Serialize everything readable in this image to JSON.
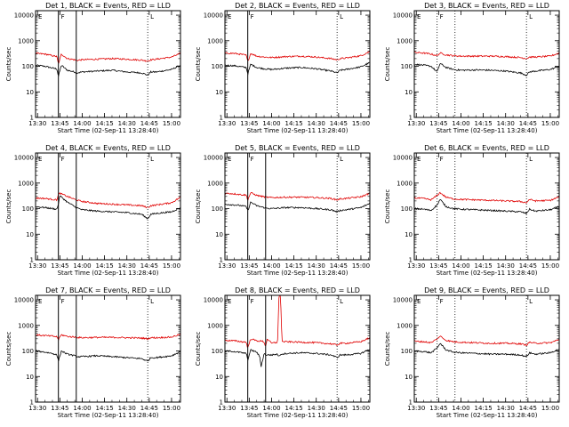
{
  "colors": {
    "events": "#000000",
    "lld": "#e00000",
    "frame": "#000000",
    "background": "#ffffff"
  },
  "shared": {
    "xlabel": "Start Time (02-Sep-11 13:28:40)",
    "ylabel": "Counts/sec",
    "xticks": [
      "13:30",
      "13:45",
      "14:00",
      "14:15",
      "14:30",
      "14:45",
      "15:00"
    ],
    "yticks": [
      "1",
      "10",
      "100",
      "1000",
      "10000"
    ],
    "flags": [
      "E",
      "F",
      "L"
    ]
  },
  "chart_data": [
    {
      "type": "line",
      "title": "Det 1, BLACK = Events, RED = LLD",
      "yscale": "log",
      "xlim": [
        "13:28:40",
        "15:06:00"
      ],
      "ylim": [
        1,
        15000
      ],
      "solid_markers": [
        "13:44",
        "13:56"
      ],
      "dotted_markers": [
        "14:44"
      ],
      "series": [
        {
          "name": "Events",
          "color": "#000000",
          "x": [
            "13:28:40",
            "13:35",
            "13:40",
            "13:43",
            "13:44",
            "13:46",
            "13:50",
            "13:55",
            "13:56",
            "14:00",
            "14:10",
            "14:20",
            "14:30",
            "14:40",
            "14:44",
            "14:46",
            "14:50",
            "15:00",
            "15:06"
          ],
          "y": [
            110,
            100,
            85,
            80,
            40,
            110,
            70,
            60,
            55,
            60,
            65,
            70,
            60,
            55,
            45,
            60,
            60,
            75,
            110
          ]
        },
        {
          "name": "LLD",
          "color": "#e00000",
          "x": [
            "13:28:40",
            "13:35",
            "13:40",
            "13:43",
            "13:44",
            "13:46",
            "13:50",
            "13:55",
            "13:56",
            "14:00",
            "14:10",
            "14:20",
            "14:30",
            "14:40",
            "14:44",
            "14:46",
            "14:50",
            "15:00",
            "15:06"
          ],
          "y": [
            320,
            300,
            260,
            240,
            120,
            300,
            200,
            180,
            170,
            180,
            190,
            200,
            190,
            175,
            160,
            180,
            190,
            230,
            320
          ]
        }
      ]
    },
    {
      "type": "line",
      "title": "Det 2, BLACK = Events, RED = LLD",
      "yscale": "log",
      "xlim": [
        "13:28:40",
        "15:06:00"
      ],
      "ylim": [
        1,
        15000
      ],
      "solid_markers": [
        "13:44"
      ],
      "dotted_markers": [
        "14:44"
      ],
      "series": [
        {
          "name": "Events",
          "color": "#000000",
          "x": [
            "13:28:40",
            "13:35",
            "13:40",
            "13:43",
            "13:44",
            "13:46",
            "13:50",
            "13:55",
            "14:00",
            "14:10",
            "14:20",
            "14:30",
            "14:40",
            "14:44",
            "14:46",
            "14:50",
            "15:00",
            "15:06"
          ],
          "y": [
            110,
            105,
            95,
            90,
            50,
            120,
            90,
            80,
            75,
            85,
            90,
            80,
            65,
            55,
            70,
            75,
            95,
            140
          ]
        },
        {
          "name": "LLD",
          "color": "#e00000",
          "x": [
            "13:28:40",
            "13:35",
            "13:40",
            "13:43",
            "13:44",
            "13:46",
            "13:50",
            "13:55",
            "14:00",
            "14:10",
            "14:20",
            "14:30",
            "14:40",
            "14:44",
            "14:46",
            "14:50",
            "15:00",
            "15:06"
          ],
          "y": [
            330,
            320,
            290,
            270,
            150,
            320,
            250,
            230,
            220,
            240,
            250,
            230,
            200,
            180,
            200,
            210,
            260,
            380
          ]
        }
      ]
    },
    {
      "type": "line",
      "title": "Det 3, BLACK = Events, RED = LLD",
      "yscale": "log",
      "xlim": [
        "13:28:40",
        "15:06:00"
      ],
      "ylim": [
        1,
        15000
      ],
      "solid_markers": [],
      "dotted_markers": [
        "13:44",
        "13:56",
        "14:44"
      ],
      "series": [
        {
          "name": "Events",
          "color": "#000000",
          "x": [
            "13:28:40",
            "13:35",
            "13:40",
            "13:44",
            "13:46",
            "13:50",
            "13:55",
            "14:00",
            "14:10",
            "14:20",
            "14:30",
            "14:40",
            "14:44",
            "14:46",
            "14:50",
            "15:00",
            "15:06"
          ],
          "y": [
            120,
            110,
            100,
            60,
            130,
            90,
            75,
            70,
            72,
            70,
            65,
            55,
            45,
            60,
            65,
            75,
            100
          ]
        },
        {
          "name": "LLD",
          "color": "#e00000",
          "x": [
            "13:28:40",
            "13:35",
            "13:40",
            "13:44",
            "13:46",
            "13:50",
            "13:55",
            "14:00",
            "14:10",
            "14:20",
            "14:30",
            "14:40",
            "14:44",
            "14:46",
            "14:50",
            "15:00",
            "15:06"
          ],
          "y": [
            350,
            330,
            300,
            260,
            330,
            280,
            260,
            250,
            250,
            250,
            240,
            220,
            200,
            230,
            230,
            250,
            330
          ]
        }
      ]
    },
    {
      "type": "line",
      "title": "Det 4, BLACK = Events, RED = LLD",
      "yscale": "log",
      "xlim": [
        "13:28:40",
        "15:06:00"
      ],
      "ylim": [
        1,
        15000
      ],
      "solid_markers": [
        "13:44",
        "13:56"
      ],
      "dotted_markers": [
        "14:44"
      ],
      "series": [
        {
          "name": "Events",
          "color": "#000000",
          "x": [
            "13:28:40",
            "13:35",
            "13:40",
            "13:43",
            "13:44",
            "13:45",
            "13:50",
            "13:55",
            "13:56",
            "14:00",
            "14:10",
            "14:20",
            "14:30",
            "14:40",
            "14:44",
            "14:46",
            "14:50",
            "15:00",
            "15:06"
          ],
          "y": [
            120,
            110,
            100,
            95,
            150,
            320,
            180,
            120,
            110,
            90,
            80,
            75,
            70,
            60,
            40,
            60,
            65,
            75,
            110
          ]
        },
        {
          "name": "LLD",
          "color": "#e00000",
          "x": [
            "13:28:40",
            "13:35",
            "13:40",
            "13:43",
            "13:44",
            "13:45",
            "13:50",
            "13:55",
            "13:56",
            "14:00",
            "14:10",
            "14:20",
            "14:30",
            "14:40",
            "14:44",
            "14:46",
            "14:50",
            "15:00",
            "15:06"
          ],
          "y": [
            260,
            250,
            230,
            220,
            350,
            400,
            300,
            230,
            220,
            190,
            160,
            150,
            140,
            130,
            110,
            130,
            140,
            170,
            280
          ]
        }
      ]
    },
    {
      "type": "line",
      "title": "Det 5, BLACK = Events, RED = LLD",
      "yscale": "log",
      "xlim": [
        "13:28:40",
        "15:06:00"
      ],
      "ylim": [
        1,
        15000
      ],
      "solid_markers": [
        "13:44",
        "13:56"
      ],
      "dotted_markers": [
        "14:44"
      ],
      "series": [
        {
          "name": "Events",
          "color": "#000000",
          "x": [
            "13:28:40",
            "13:35",
            "13:40",
            "13:43",
            "13:44",
            "13:46",
            "13:50",
            "13:55",
            "13:56",
            "14:00",
            "14:10",
            "14:20",
            "14:30",
            "14:40",
            "14:44",
            "14:46",
            "14:50",
            "15:00",
            "15:06"
          ],
          "y": [
            150,
            140,
            130,
            120,
            80,
            180,
            130,
            110,
            105,
            100,
            110,
            110,
            100,
            90,
            75,
            85,
            90,
            110,
            160
          ]
        },
        {
          "name": "LLD",
          "color": "#e00000",
          "x": [
            "13:28:40",
            "13:35",
            "13:40",
            "13:43",
            "13:44",
            "13:46",
            "13:50",
            "13:55",
            "13:56",
            "14:00",
            "14:10",
            "14:20",
            "14:30",
            "14:40",
            "14:44",
            "14:46",
            "14:50",
            "15:00",
            "15:06"
          ],
          "y": [
            400,
            380,
            350,
            340,
            220,
            420,
            330,
            290,
            280,
            270,
            280,
            280,
            270,
            250,
            220,
            240,
            250,
            290,
            400
          ]
        }
      ]
    },
    {
      "type": "line",
      "title": "Det 6, BLACK = Events, RED = LLD",
      "yscale": "log",
      "xlim": [
        "13:28:40",
        "15:06:00"
      ],
      "ylim": [
        1,
        15000
      ],
      "solid_markers": [],
      "dotted_markers": [
        "13:44",
        "13:56",
        "14:44"
      ],
      "series": [
        {
          "name": "Events",
          "color": "#000000",
          "x": [
            "13:28:40",
            "13:35",
            "13:40",
            "13:44",
            "13:46",
            "13:50",
            "13:55",
            "14:00",
            "14:10",
            "14:20",
            "14:30",
            "14:40",
            "14:44",
            "14:46",
            "14:50",
            "15:00",
            "15:06"
          ],
          "y": [
            100,
            95,
            85,
            140,
            230,
            120,
            100,
            95,
            90,
            85,
            80,
            75,
            65,
            95,
            80,
            90,
            120
          ]
        },
        {
          "name": "LLD",
          "color": "#e00000",
          "x": [
            "13:28:40",
            "13:35",
            "13:40",
            "13:44",
            "13:46",
            "13:50",
            "13:55",
            "14:00",
            "14:10",
            "14:20",
            "14:30",
            "14:40",
            "14:44",
            "14:46",
            "14:50",
            "15:00",
            "15:06"
          ],
          "y": [
            260,
            250,
            220,
            330,
            420,
            280,
            240,
            230,
            220,
            210,
            200,
            190,
            170,
            230,
            200,
            210,
            290
          ]
        }
      ]
    },
    {
      "type": "line",
      "title": "Det 7, BLACK = Events, RED = LLD",
      "yscale": "log",
      "xlim": [
        "13:28:40",
        "15:06:00"
      ],
      "ylim": [
        1,
        15000
      ],
      "solid_markers": [
        "13:44",
        "13:56"
      ],
      "dotted_markers": [
        "14:44"
      ],
      "series": [
        {
          "name": "Events",
          "color": "#000000",
          "x": [
            "13:28:40",
            "13:35",
            "13:40",
            "13:43",
            "13:44",
            "13:46",
            "13:50",
            "13:55",
            "13:56",
            "14:00",
            "14:10",
            "14:20",
            "14:30",
            "14:40",
            "14:44",
            "14:46",
            "14:50",
            "15:00",
            "15:06"
          ],
          "y": [
            100,
            90,
            80,
            70,
            40,
            100,
            75,
            65,
            60,
            60,
            65,
            60,
            55,
            50,
            40,
            55,
            55,
            65,
            95
          ]
        },
        {
          "name": "LLD",
          "color": "#e00000",
          "x": [
            "13:28:40",
            "13:35",
            "13:40",
            "13:43",
            "13:44",
            "13:46",
            "13:50",
            "13:55",
            "13:56",
            "14:00",
            "14:10",
            "14:20",
            "14:30",
            "14:40",
            "14:44",
            "14:46",
            "14:50",
            "15:00",
            "15:06"
          ],
          "y": [
            420,
            400,
            380,
            360,
            280,
            430,
            370,
            350,
            340,
            330,
            340,
            340,
            330,
            320,
            300,
            330,
            330,
            350,
            450
          ]
        }
      ]
    },
    {
      "type": "line",
      "title": "Det 8, BLACK = Events, RED = LLD",
      "yscale": "log",
      "xlim": [
        "13:28:40",
        "15:06:00"
      ],
      "ylim": [
        1,
        15000
      ],
      "solid_markers": [
        "13:44",
        "13:56"
      ],
      "dotted_markers": [
        "14:44"
      ],
      "series": [
        {
          "name": "Events",
          "color": "#000000",
          "x": [
            "13:28:40",
            "13:35",
            "13:40",
            "13:43",
            "13:44",
            "13:46",
            "13:50",
            "13:52",
            "13:53",
            "13:55",
            "13:56",
            "14:00",
            "14:04",
            "14:05",
            "14:06",
            "14:10",
            "14:20",
            "14:30",
            "14:40",
            "14:44",
            "14:46",
            "14:50",
            "15:00",
            "15:06"
          ],
          "y": [
            100,
            95,
            85,
            80,
            45,
            110,
            90,
            60,
            25,
            80,
            70,
            70,
            75,
            60,
            75,
            80,
            85,
            80,
            70,
            55,
            70,
            70,
            80,
            120
          ]
        },
        {
          "name": "LLD",
          "color": "#e00000",
          "x": [
            "13:28:40",
            "13:35",
            "13:40",
            "13:43",
            "13:44",
            "13:46",
            "13:50",
            "13:54",
            "13:55",
            "13:56",
            "13:57",
            "14:00",
            "14:04",
            "14:05",
            "14:06",
            "14:07",
            "14:10",
            "14:20",
            "14:30",
            "14:40",
            "14:44",
            "14:46",
            "14:50",
            "15:00",
            "15:06"
          ],
          "y": [
            260,
            250,
            230,
            220,
            130,
            300,
            250,
            240,
            220,
            150,
            300,
            200,
            220,
            15000,
            15000,
            230,
            230,
            220,
            210,
            190,
            170,
            200,
            200,
            230,
            330
          ]
        }
      ]
    },
    {
      "type": "line",
      "title": "Det 9, BLACK = Events, RED = LLD",
      "yscale": "log",
      "xlim": [
        "13:28:40",
        "15:06:00"
      ],
      "ylim": [
        1,
        15000
      ],
      "solid_markers": [],
      "dotted_markers": [
        "13:44",
        "13:56",
        "14:44"
      ],
      "series": [
        {
          "name": "Events",
          "color": "#000000",
          "x": [
            "13:28:40",
            "13:35",
            "13:40",
            "13:44",
            "13:46",
            "13:50",
            "13:55",
            "14:00",
            "14:10",
            "14:20",
            "14:30",
            "14:40",
            "14:44",
            "14:46",
            "14:50",
            "15:00",
            "15:06"
          ],
          "y": [
            100,
            95,
            85,
            130,
            200,
            110,
            90,
            85,
            80,
            75,
            75,
            70,
            60,
            85,
            75,
            85,
            120
          ]
        },
        {
          "name": "LLD",
          "color": "#e00000",
          "x": [
            "13:28:40",
            "13:35",
            "13:40",
            "13:44",
            "13:46",
            "13:50",
            "13:55",
            "14:00",
            "14:10",
            "14:20",
            "14:30",
            "14:40",
            "14:44",
            "14:46",
            "14:50",
            "15:00",
            "15:06"
          ],
          "y": [
            240,
            230,
            210,
            300,
            380,
            260,
            230,
            220,
            210,
            200,
            200,
            190,
            170,
            220,
            200,
            210,
            280
          ]
        }
      ]
    }
  ]
}
